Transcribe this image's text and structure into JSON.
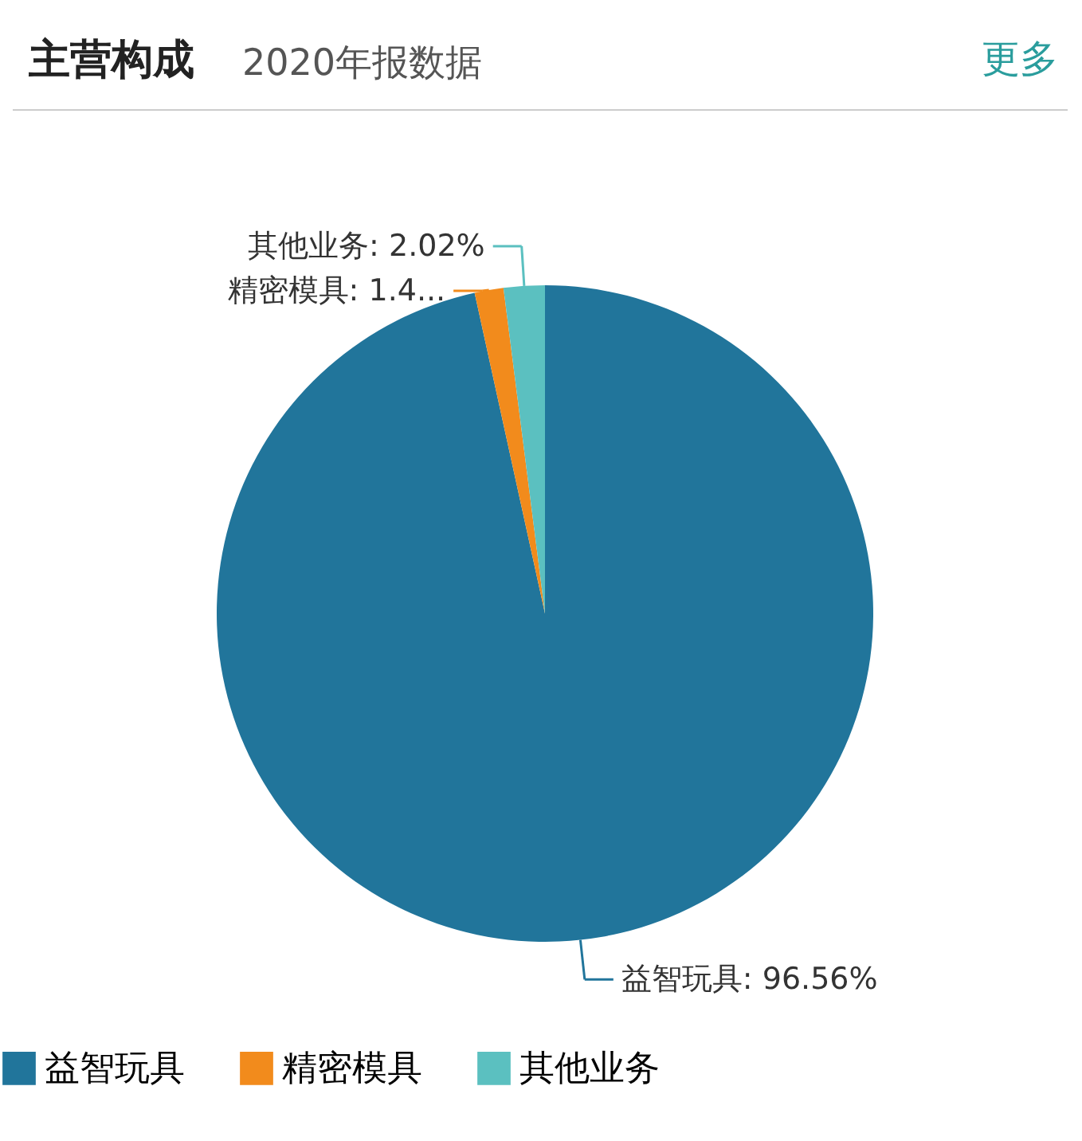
{
  "chart_data": {
    "type": "pie",
    "title": "主营构成",
    "subtitle": "2020年报数据",
    "annotations": [
      "更多"
    ],
    "categories": [
      "益智玩具",
      "精密模具",
      "其他业务"
    ],
    "values": [
      96.56,
      1.42,
      2.02
    ],
    "colors": [
      "#21759b",
      "#f28b1c",
      "#5bc0c0"
    ],
    "value_labels": [
      "益智玩具: 96.56%",
      "精密模具: 1.4...",
      "其他业务: 2.02%"
    ],
    "legend": "bottom"
  }
}
